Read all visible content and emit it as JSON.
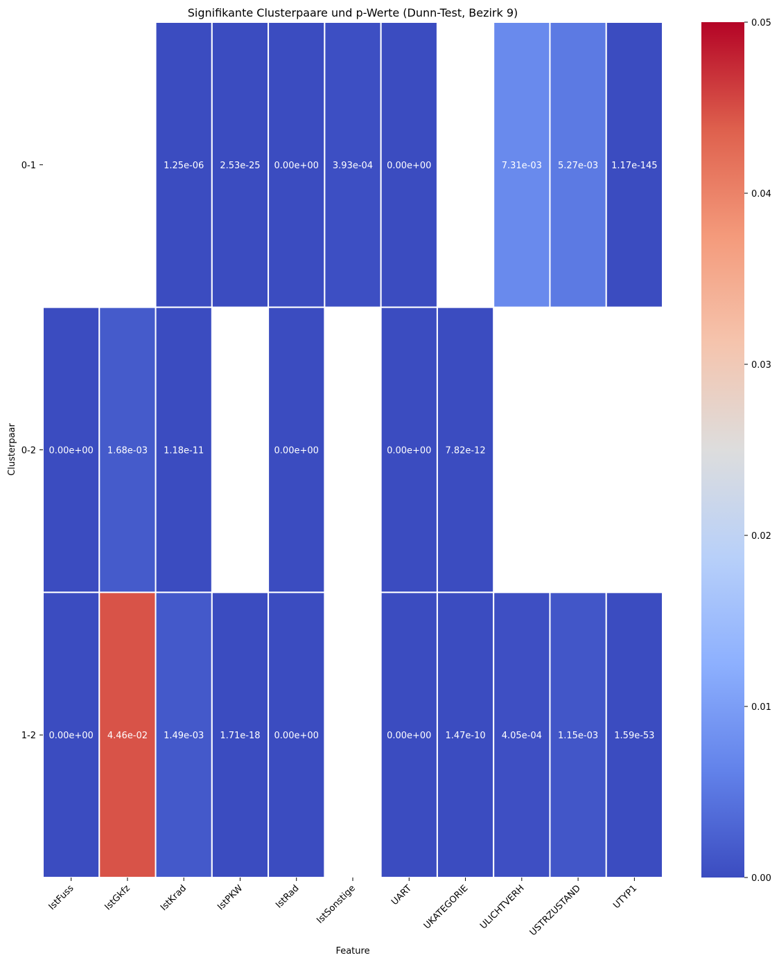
{
  "chart_data": {
    "type": "heatmap",
    "title": "Signifikante Clusterpaare und p-Werte (Dunn-Test, Bezirk 9)",
    "xlabel": "Feature",
    "ylabel": "Clusterpaar",
    "x_categories": [
      "IstFuss",
      "IstGkfz",
      "IstKrad",
      "IstPKW",
      "IstRad",
      "IstSonstige",
      "UART",
      "UKATEGORIE",
      "ULICHTVERH",
      "USTRZUSTAND",
      "UTYP1"
    ],
    "y_categories": [
      "0-1",
      "0-2",
      "1-2"
    ],
    "values": [
      [
        null,
        null,
        1.25e-06,
        2.53e-25,
        0.0,
        0.000393,
        0.0,
        null,
        0.00731,
        0.00527,
        1.17e-145
      ],
      [
        0.0,
        0.00168,
        1.18e-11,
        null,
        0.0,
        null,
        0.0,
        7.82e-12,
        null,
        null,
        null
      ],
      [
        0.0,
        0.0446,
        0.00149,
        1.71e-18,
        0.0,
        null,
        0.0,
        1.47e-10,
        0.000405,
        0.00115,
        1.59e-53
      ]
    ],
    "labels": [
      [
        null,
        null,
        "1.25e-06",
        "2.53e-25",
        "0.00e+00",
        "3.93e-04",
        "0.00e+00",
        null,
        "7.31e-03",
        "5.27e-03",
        "1.17e-145"
      ],
      [
        "0.00e+00",
        "1.68e-03",
        "1.18e-11",
        null,
        "0.00e+00",
        null,
        "0.00e+00",
        "7.82e-12",
        null,
        null,
        null
      ],
      [
        "0.00e+00",
        "4.46e-02",
        "1.49e-03",
        "1.71e-18",
        "0.00e+00",
        null,
        "0.00e+00",
        "1.47e-10",
        "4.05e-04",
        "1.15e-03",
        "1.59e-53"
      ]
    ],
    "colormap": "coolwarm",
    "vmin": 0.0,
    "vmax": 0.05,
    "colorbar_ticks": [
      "0.00",
      "0.01",
      "0.02",
      "0.03",
      "0.04",
      "0.05"
    ],
    "colorbar_tick_values": [
      0.0,
      0.01,
      0.02,
      0.03,
      0.04,
      0.05
    ],
    "cell_text_color": "#ffffff",
    "grid_line_color": "#ffffff"
  }
}
